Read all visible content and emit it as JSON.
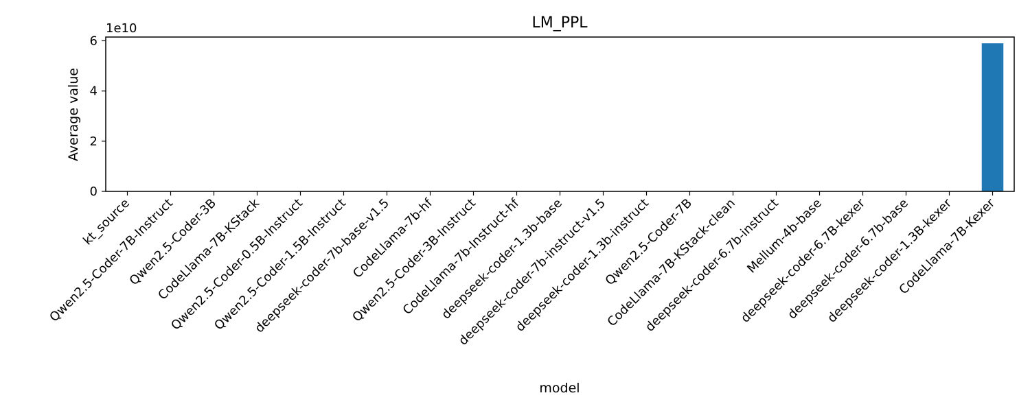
{
  "chart_data": {
    "type": "bar",
    "title": "LM_PPL",
    "xlabel": "model",
    "ylabel": "Average value",
    "y_multiplier_label": "1e10",
    "ylim": [
      0,
      61500000000
    ],
    "y_ticks": [
      0,
      20000000000,
      40000000000,
      60000000000
    ],
    "y_tick_labels": [
      "0",
      "2",
      "4",
      "6"
    ],
    "grid": false,
    "bar_color": "#1f77b4",
    "categories": [
      "kt_source",
      "Qwen2.5-Coder-7B-Instruct",
      "Qwen2.5-Coder-3B",
      "CodeLlama-7B-KStack",
      "Qwen2.5-Coder-0.5B-Instruct",
      "Qwen2.5-Coder-1.5B-Instruct",
      "deepseek-coder-7b-base-v1.5",
      "CodeLlama-7b-hf",
      "Qwen2.5-Coder-3B-Instruct",
      "CodeLlama-7b-Instruct-hf",
      "deepseek-coder-1.3b-base",
      "deepseek-coder-7b-instruct-v1.5",
      "deepseek-coder-1.3b-instruct",
      "Qwen2.5-Coder-7B",
      "CodeLlama-7B-KStack-clean",
      "deepseek-coder-6.7b-instruct",
      "Mellum-4b-base",
      "deepseek-coder-6.7B-kexer",
      "deepseek-coder-6.7b-base",
      "deepseek-coder-1.3B-kexer",
      "CodeLlama-7B-Kexer"
    ],
    "values": [
      0,
      0,
      0,
      0,
      0,
      0,
      0,
      0,
      0,
      0,
      0,
      0,
      0,
      0,
      0,
      0,
      0,
      0,
      0,
      0,
      59000000000
    ]
  }
}
